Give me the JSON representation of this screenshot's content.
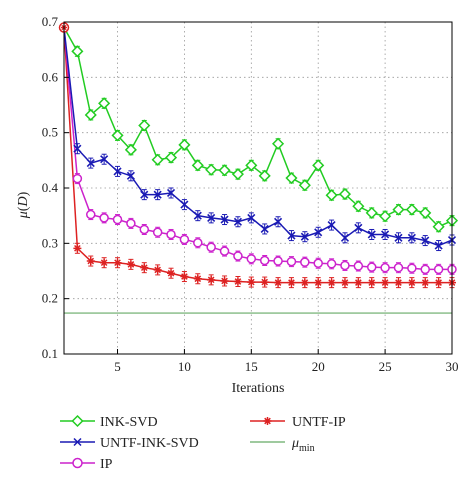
{
  "chart_data": {
    "type": "line",
    "xlabel": "Iterations",
    "ylabel": "μ(D)",
    "xlim": [
      1,
      30
    ],
    "ylim": [
      0.1,
      0.7
    ],
    "x_ticks": [
      5,
      10,
      15,
      20,
      25,
      30
    ],
    "y_ticks": [
      0.1,
      0.2,
      0.3,
      0.4,
      0.5,
      0.6,
      0.7
    ],
    "x_tick_labels": [
      "5",
      "10",
      "15",
      "20",
      "25",
      "30"
    ],
    "y_tick_labels": [
      "0.1",
      "0.2",
      "0.3",
      "0.4",
      "0.5",
      "0.6",
      "0.7"
    ],
    "grid": true,
    "legend_position": "below",
    "x": [
      1,
      2,
      3,
      4,
      5,
      6,
      7,
      8,
      9,
      10,
      11,
      12,
      13,
      14,
      15,
      16,
      17,
      18,
      19,
      20,
      21,
      22,
      23,
      24,
      25,
      26,
      27,
      28,
      29,
      30
    ],
    "series": [
      {
        "name": "INK-SVD",
        "color": "#22cc22",
        "marker": "diamond",
        "values": [
          0.69,
          0.647,
          0.532,
          0.553,
          0.495,
          0.469,
          0.513,
          0.451,
          0.455,
          0.478,
          0.441,
          0.433,
          0.432,
          0.425,
          0.441,
          0.422,
          0.48,
          0.418,
          0.405,
          0.441,
          0.387,
          0.389,
          0.367,
          0.355,
          0.349,
          0.361,
          0.361,
          0.355,
          0.33,
          0.341
        ]
      },
      {
        "name": "UNTF-INK-SVD",
        "color": "#1a1ab4",
        "marker": "x",
        "values": [
          0.69,
          0.471,
          0.445,
          0.452,
          0.43,
          0.422,
          0.388,
          0.388,
          0.391,
          0.37,
          0.35,
          0.346,
          0.343,
          0.339,
          0.346,
          0.326,
          0.339,
          0.314,
          0.312,
          0.32,
          0.333,
          0.31,
          0.328,
          0.316,
          0.316,
          0.31,
          0.31,
          0.305,
          0.296,
          0.306
        ]
      },
      {
        "name": "IP",
        "color": "#cc22cc",
        "marker": "circle",
        "values": [
          0.69,
          0.417,
          0.352,
          0.346,
          0.343,
          0.336,
          0.325,
          0.32,
          0.316,
          0.307,
          0.301,
          0.293,
          0.286,
          0.277,
          0.272,
          0.269,
          0.268,
          0.267,
          0.266,
          0.264,
          0.263,
          0.26,
          0.259,
          0.257,
          0.256,
          0.256,
          0.255,
          0.253,
          0.253,
          0.253
        ]
      },
      {
        "name": "UNTF-IP",
        "color": "#dd2222",
        "marker": "star",
        "values": [
          0.69,
          0.291,
          0.268,
          0.265,
          0.265,
          0.262,
          0.256,
          0.252,
          0.246,
          0.24,
          0.236,
          0.234,
          0.232,
          0.231,
          0.23,
          0.23,
          0.229,
          0.229,
          0.229,
          0.229,
          0.229,
          0.229,
          0.229,
          0.229,
          0.229,
          0.229,
          0.229,
          0.229,
          0.229,
          0.229
        ]
      },
      {
        "name": "μ_min",
        "color": "#66aa66",
        "marker": "none",
        "values": [
          0.174,
          0.174,
          0.174,
          0.174,
          0.174,
          0.174,
          0.174,
          0.174,
          0.174,
          0.174,
          0.174,
          0.174,
          0.174,
          0.174,
          0.174,
          0.174,
          0.174,
          0.174,
          0.174,
          0.174,
          0.174,
          0.174,
          0.174,
          0.174,
          0.174,
          0.174,
          0.174,
          0.174,
          0.174,
          0.174
        ]
      }
    ]
  },
  "legend": {
    "ink_svd": "INK-SVD",
    "untf_ink_svd": "UNTF-INK-SVD",
    "ip": "IP",
    "untf_ip": "UNTF-IP",
    "mu_main": "μ",
    "mu_sub": "min"
  },
  "axes": {
    "xlabel": "Iterations",
    "ylabel_mu": "μ",
    "ylabel_paren_open": "(",
    "ylabel_D": "D",
    "ylabel_paren_close": ")"
  }
}
